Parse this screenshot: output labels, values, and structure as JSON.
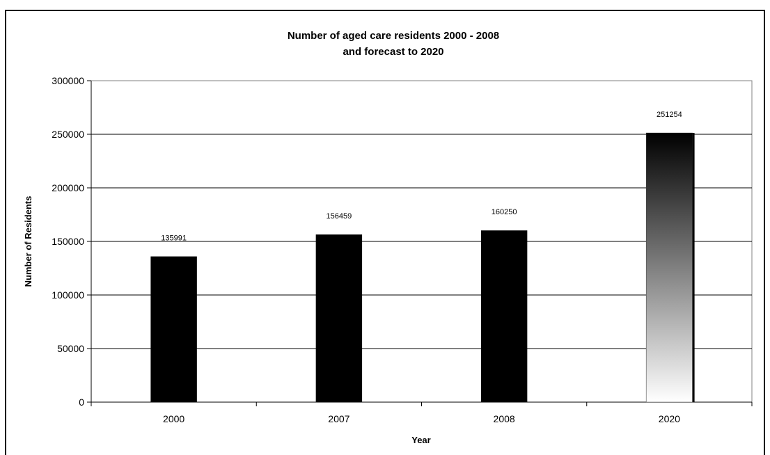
{
  "chart_data": {
    "type": "bar",
    "title": "Number of aged care residents 2000 - 2008",
    "subtitle": "and forecast to 2020",
    "xlabel": "Year",
    "ylabel": "Number of Residents",
    "categories": [
      "2000",
      "2007",
      "2008",
      "2020"
    ],
    "values": [
      135991,
      156459,
      160250,
      251254
    ],
    "data_labels": [
      "135991",
      "156459",
      "160250",
      "251254"
    ],
    "bar_styles": [
      "solid",
      "solid",
      "solid",
      "gradient"
    ],
    "ylim": [
      0,
      300000
    ],
    "yticks": [
      0,
      50000,
      100000,
      150000,
      200000,
      250000,
      300000
    ],
    "ytick_labels": [
      "0",
      "50000",
      "100000",
      "150000",
      "200000",
      "250000",
      "300000"
    ],
    "grid": true,
    "legend": "none",
    "colors": {
      "bar": "#000000",
      "gradient_top": "#000000",
      "gradient_bottom": "#ffffff",
      "grid": "#000000",
      "background": "#ffffff"
    }
  }
}
